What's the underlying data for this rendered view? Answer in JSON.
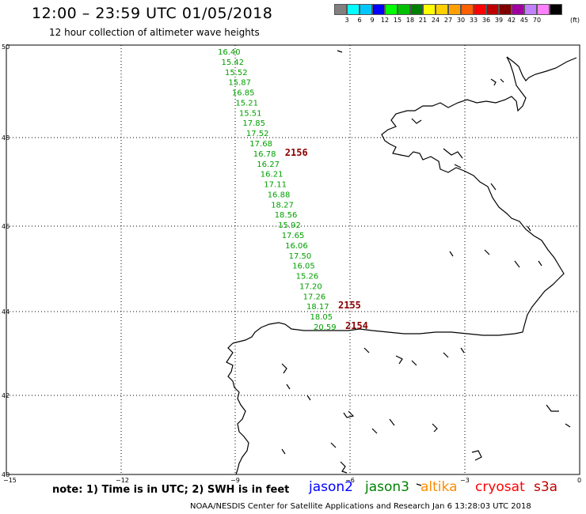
{
  "header": {
    "title": "12:00 – 23:59 UTC 01/05/2018",
    "subtitle": "12 hour collection of altimeter wave heights"
  },
  "legend": {
    "unit": "(ft)",
    "colors": [
      "#808080",
      "#00ffff",
      "#00c8ff",
      "#0000ff",
      "#00ff00",
      "#00c000",
      "#008000",
      "#ffff00",
      "#ffd000",
      "#ffa000",
      "#ff6000",
      "#ff0000",
      "#c00000",
      "#800000",
      "#a000a0",
      "#c080ff",
      "#ff80ff",
      "#000000"
    ],
    "labels": [
      "3",
      "6",
      "9",
      "12",
      "15",
      "18",
      "21",
      "24",
      "27",
      "30",
      "33",
      "36",
      "39",
      "42",
      "45",
      "70"
    ]
  },
  "axes": {
    "lat_labels": [
      "50",
      "48",
      "46",
      "44",
      "42",
      "40"
    ],
    "lon_labels": [
      "−15",
      "−12",
      "−9",
      "−6",
      "−3",
      "0"
    ]
  },
  "track": {
    "values": [
      "16.40",
      "15.42",
      "15.52",
      "15.87",
      "16.85",
      "15.21",
      "15.51",
      "17.85",
      "17.52",
      "17.68",
      "16.78",
      "16.27",
      "16.21",
      "17.11",
      "16.88",
      "18.27",
      "18.56",
      "15.92",
      "17.65",
      "16.06",
      "17.50",
      "16.05",
      "15.26",
      "17.20",
      "17.26",
      "18.17",
      "18.05",
      "20.59"
    ],
    "color": "#00a000",
    "pass_labels": [
      "2156",
      "2155",
      "2154"
    ],
    "pass_color": "#8b0000"
  },
  "footer": {
    "note": "note: 1) Time is in UTC; 2) SWH is in feet",
    "missions": [
      {
        "name": "jason2",
        "color": "#0000ff"
      },
      {
        "name": "jason3",
        "color": "#008000"
      },
      {
        "name": "altika",
        "color": "#ff8c00"
      },
      {
        "name": "cryosat",
        "color": "#ff0000"
      },
      {
        "name": "s3a",
        "color": "#c00000"
      }
    ],
    "credit": "NOAA/NESDIS Center for Satellite Applications and Research   Jan  6 13:28:03 UTC 2018"
  }
}
